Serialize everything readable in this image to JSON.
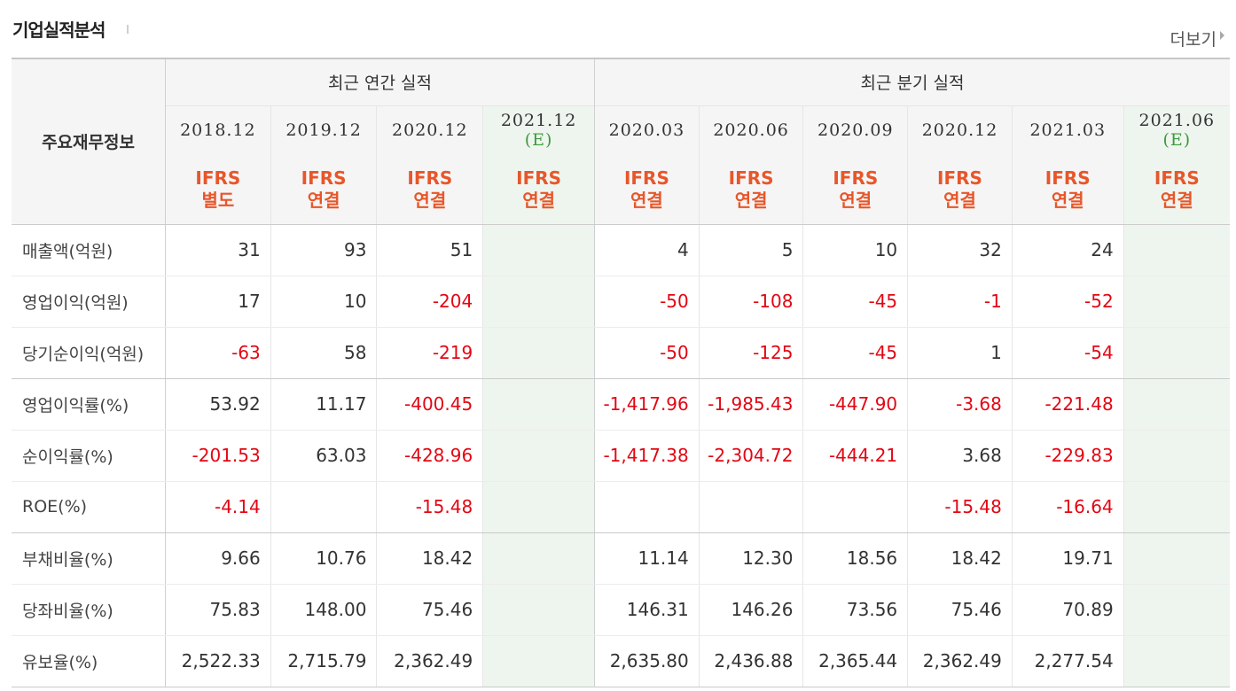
{
  "title": "기업실적분석",
  "more_label": "더보기",
  "corner_label": "주요재무정보",
  "groups": {
    "annual": "최근 연간 실적",
    "quarter": "최근 분기 실적"
  },
  "periods": [
    {
      "date": "2018.12",
      "est": "",
      "ifrs1": "IFRS",
      "ifrs2": "별도"
    },
    {
      "date": "2019.12",
      "est": "",
      "ifrs1": "IFRS",
      "ifrs2": "연결"
    },
    {
      "date": "2020.12",
      "est": "",
      "ifrs1": "IFRS",
      "ifrs2": "연결"
    },
    {
      "date": "2021.12",
      "est": "(E)",
      "ifrs1": "IFRS",
      "ifrs2": "연결"
    },
    {
      "date": "2020.03",
      "est": "",
      "ifrs1": "IFRS",
      "ifrs2": "연결"
    },
    {
      "date": "2020.06",
      "est": "",
      "ifrs1": "IFRS",
      "ifrs2": "연결"
    },
    {
      "date": "2020.09",
      "est": "",
      "ifrs1": "IFRS",
      "ifrs2": "연결"
    },
    {
      "date": "2020.12",
      "est": "",
      "ifrs1": "IFRS",
      "ifrs2": "연결"
    },
    {
      "date": "2021.03",
      "est": "",
      "ifrs1": "IFRS",
      "ifrs2": "연결"
    },
    {
      "date": "2021.06",
      "est": "(E)",
      "ifrs1": "IFRS",
      "ifrs2": "연결"
    }
  ],
  "rows": [
    {
      "label": "매출액(억원)",
      "values": [
        "31",
        "93",
        "51",
        "",
        "4",
        "5",
        "10",
        "32",
        "24",
        ""
      ]
    },
    {
      "label": "영업이익(억원)",
      "values": [
        "17",
        "10",
        "-204",
        "",
        "-50",
        "-108",
        "-45",
        "-1",
        "-52",
        ""
      ]
    },
    {
      "label": "당기순이익(억원)",
      "values": [
        "-63",
        "58",
        "-219",
        "",
        "-50",
        "-125",
        "-45",
        "1",
        "-54",
        ""
      ]
    },
    {
      "label": "영업이익률(%)",
      "values": [
        "53.92",
        "11.17",
        "-400.45",
        "",
        "-1,417.96",
        "-1,985.43",
        "-447.90",
        "-3.68",
        "-221.48",
        ""
      ]
    },
    {
      "label": "순이익률(%)",
      "values": [
        "-201.53",
        "63.03",
        "-428.96",
        "",
        "-1,417.38",
        "-2,304.72",
        "-444.21",
        "3.68",
        "-229.83",
        ""
      ]
    },
    {
      "label": "ROE(%)",
      "values": [
        "-4.14",
        "",
        "-15.48",
        "",
        "",
        "",
        "",
        "-15.48",
        "-16.64",
        ""
      ]
    },
    {
      "label": "부채비율(%)",
      "values": [
        "9.66",
        "10.76",
        "18.42",
        "",
        "11.14",
        "12.30",
        "18.56",
        "18.42",
        "19.71",
        ""
      ]
    },
    {
      "label": "당좌비율(%)",
      "values": [
        "75.83",
        "148.00",
        "75.46",
        "",
        "146.31",
        "146.26",
        "73.56",
        "75.46",
        "70.89",
        ""
      ]
    },
    {
      "label": "유보율(%)",
      "values": [
        "2,522.33",
        "2,715.79",
        "2,362.49",
        "",
        "2,635.80",
        "2,436.88",
        "2,365.44",
        "2,362.49",
        "2,277.54",
        ""
      ]
    }
  ],
  "colors": {
    "negative": "#e30613",
    "ifrs": "#e8562a",
    "estimate": "#3d9a3d",
    "estimate_bg": "#eef5ee"
  }
}
